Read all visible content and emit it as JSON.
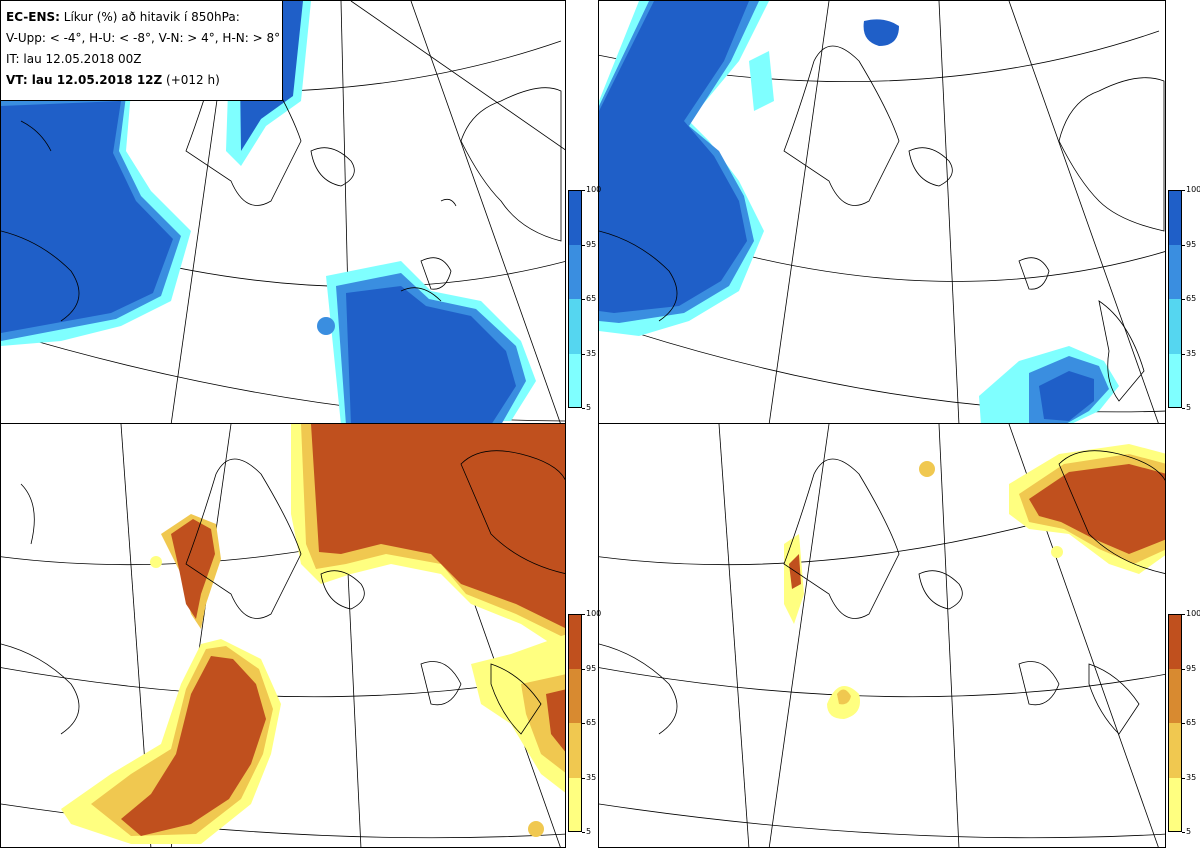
{
  "legend": {
    "line1_bold": "EC-ENS:",
    "line1_rest": " Líkur (%) að hitavik í 850hPa:",
    "line2": "V-Upp: < -4°, H-U: < -8°, V-N: > 4°, H-N: > 8°",
    "line3": "IT: lau 12.05.2018 00Z",
    "line4_bold": "VT: lau 12.05.2018 12Z",
    "line4_rest": " (+012 h)"
  },
  "colorbars": {
    "ticks": [
      "100",
      "95",
      "65",
      "35",
      "5"
    ],
    "cold_colors": [
      "#7fffff",
      "#55d6f0",
      "#3a8ee0",
      "#1f5fc8"
    ],
    "warm_colors": [
      "#ffff80",
      "#f0c850",
      "#d88a30",
      "#c0501e"
    ]
  },
  "panels": [
    {
      "id": "V-Upp",
      "scheme": "cold"
    },
    {
      "id": "H-U",
      "scheme": "cold"
    },
    {
      "id": "V-N",
      "scheme": "warm"
    },
    {
      "id": "H-N",
      "scheme": "warm"
    }
  ]
}
